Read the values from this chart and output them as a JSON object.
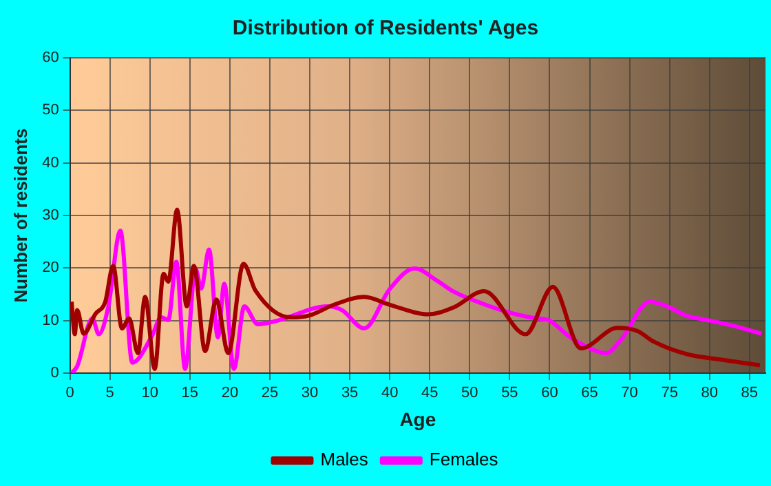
{
  "chart_data": {
    "type": "line",
    "title": "Distribution of Residents' Ages",
    "xlabel": "Age",
    "ylabel": "Number of residents",
    "xlim": [
      0,
      87
    ],
    "xticks": [
      0,
      5,
      10,
      15,
      20,
      25,
      30,
      35,
      40,
      45,
      50,
      55,
      60,
      65,
      70,
      75,
      80,
      85
    ],
    "ylim": [
      0,
      60
    ],
    "yticks": [
      0,
      10,
      20,
      30,
      40,
      50,
      60
    ],
    "grid": true,
    "legend": "bottom",
    "marker": "none",
    "line_style": "solid",
    "series": [
      {
        "name": "Males",
        "color": "#a00000",
        "x": [
          0.2,
          0.6,
          0.9,
          1.7,
          3.2,
          4.4,
          5.4,
          6.5,
          7.4,
          8.5,
          9.4,
          10.6,
          11.7,
          12.3,
          13.4,
          14.6,
          15.5,
          16.9,
          18.3,
          19.8,
          21.7,
          23.2,
          27.6,
          30,
          33,
          36.8,
          40,
          44.8,
          48,
          51.8,
          57,
          60.4,
          63.9,
          68.5,
          71,
          73,
          77.2,
          81.8,
          86.3
        ],
        "values": [
          13.6,
          7.4,
          12,
          7.5,
          11.3,
          13.5,
          20.4,
          8.5,
          10.4,
          3.8,
          14.5,
          0.8,
          18.9,
          17.4,
          31.1,
          12.7,
          20.4,
          4.2,
          14,
          3.8,
          20.8,
          15.7,
          10.6,
          11,
          13,
          14.5,
          13,
          11.2,
          12.5,
          15.6,
          7.4,
          16.4,
          4.7,
          8.6,
          8,
          6,
          3.6,
          2.5,
          1.5
        ]
      },
      {
        "name": "Females",
        "color": "#ff00ff",
        "x": [
          0.2,
          0.9,
          2.8,
          3.6,
          4.8,
          6.3,
          7.8,
          10.2,
          11.4,
          12.3,
          13.3,
          14.4,
          15.7,
          16.4,
          17.4,
          18.5,
          19.3,
          20.5,
          21.8,
          23.5,
          26,
          32.2,
          34,
          36.8,
          40,
          43.1,
          46,
          48,
          52,
          55,
          58,
          60,
          62,
          64,
          67.1,
          69,
          72.5,
          75,
          77,
          80,
          83,
          86.5
        ],
        "values": [
          0,
          1.3,
          10.4,
          7.4,
          12.7,
          27.1,
          2,
          6.9,
          10.6,
          10.1,
          21.2,
          0.8,
          19.9,
          16.1,
          23.5,
          6.8,
          17,
          0.8,
          12.7,
          9.3,
          10,
          12.7,
          12,
          8.5,
          16,
          19.9,
          17.5,
          15.5,
          13,
          11.5,
          10.5,
          10,
          7.5,
          5.5,
          3.8,
          6.5,
          13.6,
          12.5,
          11,
          10,
          9,
          7.5
        ]
      }
    ]
  }
}
